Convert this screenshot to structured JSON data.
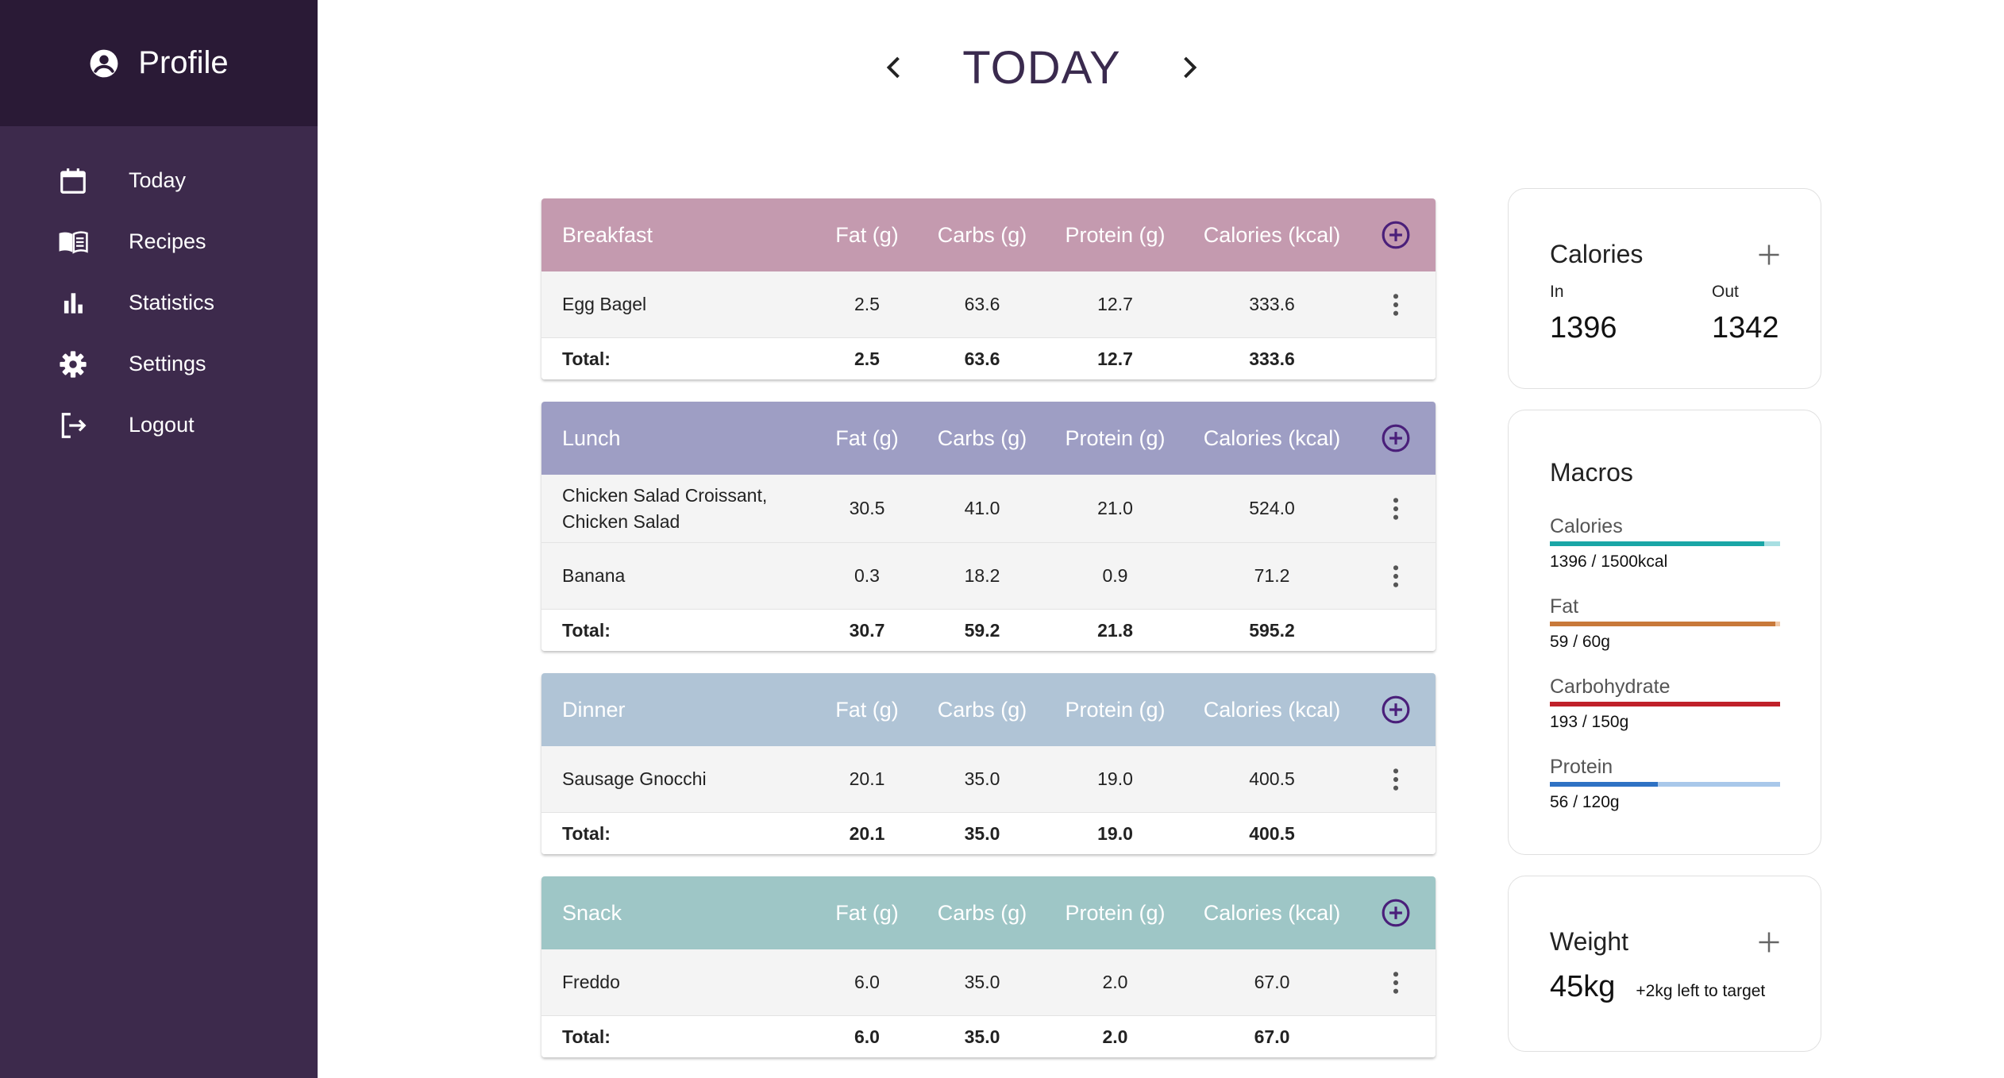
{
  "sidebar": {
    "profile_label": "Profile",
    "items": [
      {
        "label": "Today",
        "icon": "calendar-icon"
      },
      {
        "label": "Recipes",
        "icon": "book-icon"
      },
      {
        "label": "Statistics",
        "icon": "bar-chart-icon"
      },
      {
        "label": "Settings",
        "icon": "gear-icon"
      },
      {
        "label": "Logout",
        "icon": "logout-icon"
      }
    ]
  },
  "header": {
    "title": "TODAY"
  },
  "columns": [
    "Fat (g)",
    "Carbs (g)",
    "Protein (g)",
    "Calories (kcal)"
  ],
  "total_label": "Total:",
  "meals": [
    {
      "name": "Breakfast",
      "color": "#c49aaf",
      "rows": [
        {
          "item": "Egg Bagel",
          "fat": "2.5",
          "carbs": "63.6",
          "protein": "12.7",
          "calories": "333.6"
        }
      ],
      "total": {
        "fat": "2.5",
        "carbs": "63.6",
        "protein": "12.7",
        "calories": "333.6"
      }
    },
    {
      "name": "Lunch",
      "color": "#9e9ec4",
      "rows": [
        {
          "item": "Chicken Salad Croissant, Chicken Salad",
          "fat": "30.5",
          "carbs": "41.0",
          "protein": "21.0",
          "calories": "524.0"
        },
        {
          "item": "Banana",
          "fat": "0.3",
          "carbs": "18.2",
          "protein": "0.9",
          "calories": "71.2"
        }
      ],
      "total": {
        "fat": "30.7",
        "carbs": "59.2",
        "protein": "21.8",
        "calories": "595.2"
      }
    },
    {
      "name": "Dinner",
      "color": "#b0c4d6",
      "rows": [
        {
          "item": "Sausage Gnocchi",
          "fat": "20.1",
          "carbs": "35.0",
          "protein": "19.0",
          "calories": "400.5"
        }
      ],
      "total": {
        "fat": "20.1",
        "carbs": "35.0",
        "protein": "19.0",
        "calories": "400.5"
      }
    },
    {
      "name": "Snack",
      "color": "#9ec6c6",
      "rows": [
        {
          "item": "Freddo",
          "fat": "6.0",
          "carbs": "35.0",
          "protein": "2.0",
          "calories": "67.0"
        }
      ],
      "total": {
        "fat": "6.0",
        "carbs": "35.0",
        "protein": "2.0",
        "calories": "67.0"
      }
    }
  ],
  "calories_card": {
    "title": "Calories",
    "in_label": "In",
    "in_value": "1396",
    "out_label": "Out",
    "out_value": "1342"
  },
  "macros_card": {
    "title": "Macros",
    "items": [
      {
        "name": "Calories",
        "amount": "1396 / 1500kcal",
        "fraction": 0.93,
        "color": "#1aa6a6",
        "track": "#a8dfe2"
      },
      {
        "name": "Fat",
        "amount": "59 / 60g",
        "fraction": 0.98,
        "color": "#c8793a",
        "track": "#f0c9a8"
      },
      {
        "name": "Carbohydrate",
        "amount": "193 / 150g",
        "fraction": 1.0,
        "color": "#c0212a",
        "track": "#f0a8a8"
      },
      {
        "name": "Protein",
        "amount": "56 / 120g",
        "fraction": 0.47,
        "color": "#2f72c4",
        "track": "#a9c8ea"
      }
    ]
  },
  "weight_card": {
    "title": "Weight",
    "value": "45kg",
    "note": "+2kg left to target"
  }
}
